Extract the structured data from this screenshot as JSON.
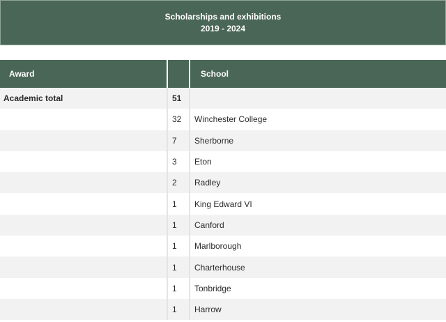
{
  "banner": {
    "title_line1": "Scholarships and exhibitions",
    "title_line2": "2019 - 2024"
  },
  "table": {
    "headers": {
      "award": "Award",
      "count": "",
      "school": "School"
    },
    "rows": [
      {
        "award": "Academic total",
        "count": "51",
        "school": ""
      },
      {
        "award": "",
        "count": "32",
        "school": "Winchester College"
      },
      {
        "award": "",
        "count": "7",
        "school": "Sherborne"
      },
      {
        "award": "",
        "count": "3",
        "school": "Eton"
      },
      {
        "award": "",
        "count": "2",
        "school": "Radley"
      },
      {
        "award": "",
        "count": "1",
        "school": "King Edward VI"
      },
      {
        "award": "",
        "count": "1",
        "school": "Canford"
      },
      {
        "award": "",
        "count": "1",
        "school": "Marlborough"
      },
      {
        "award": "",
        "count": "1",
        "school": "Charterhouse"
      },
      {
        "award": "",
        "count": "1",
        "school": "Tonbridge"
      },
      {
        "award": "",
        "count": "1",
        "school": "Harrow"
      }
    ]
  }
}
